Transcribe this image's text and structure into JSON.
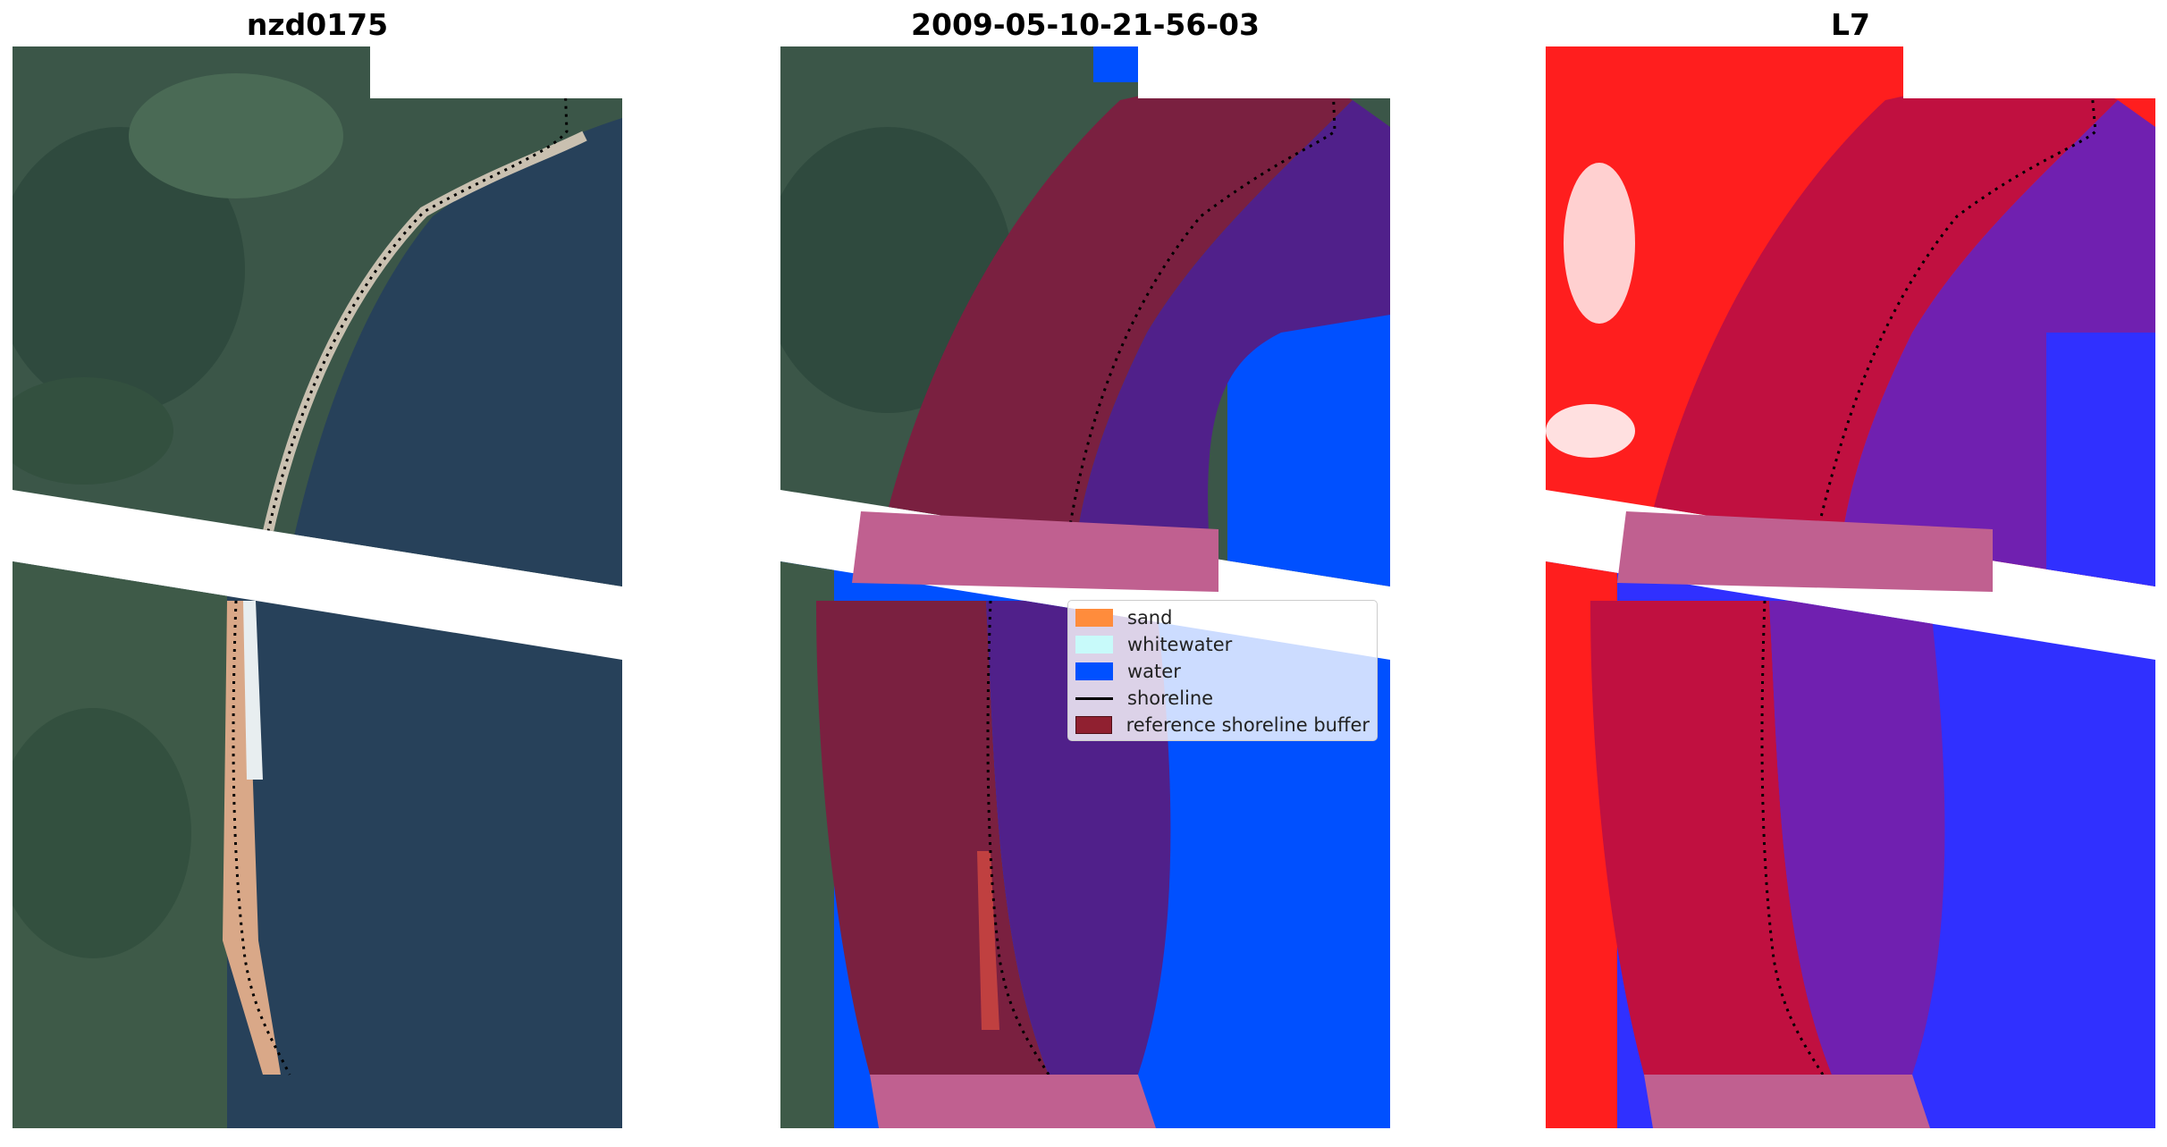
{
  "titles": {
    "left": "nzd0175",
    "center": "2009-05-10-21-56-03",
    "right": "L7"
  },
  "legend": {
    "items": [
      {
        "label": "sand",
        "color": "#ff8c3c",
        "kind": "patch"
      },
      {
        "label": "whitewater",
        "color": "#c8fafa",
        "kind": "patch"
      },
      {
        "label": "water",
        "color": "#0050ff",
        "kind": "patch"
      },
      {
        "label": "shoreline",
        "color": "#000000",
        "kind": "line"
      },
      {
        "label": "reference shoreline buffer",
        "color": "#902030",
        "kind": "patch"
      }
    ]
  },
  "colors": {
    "land": "#3f5a4a",
    "water_image": "#27415a",
    "beach": "#c9c0b0",
    "overlay_water": "#0050ff",
    "buffer": "#c06090",
    "land_overlay": "#7a2040",
    "water_overlay": "#50208a",
    "index_land": "#ff1e1e",
    "index_water": "#3030ff"
  }
}
